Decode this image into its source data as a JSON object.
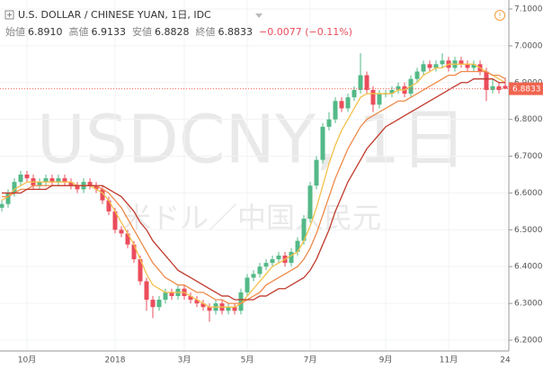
{
  "header": {
    "title": "U.S. DOLLAR / CHINESE YUAN, 1日, IDC",
    "stats": [
      {
        "label": "始値",
        "value": "6.8910"
      },
      {
        "label": "高値",
        "value": "6.9133"
      },
      {
        "label": "安値",
        "value": "6.8828"
      },
      {
        "label": "終値",
        "value": "6.8833"
      }
    ],
    "change": "−0.0077 (−0.11%)"
  },
  "chart_data": {
    "type": "candlestick",
    "watermark": "USDCNY, 1日",
    "watermark_sub": "米ドル／中国人民元",
    "categories": [
      null,
      null,
      null,
      null,
      "10月",
      null,
      null,
      null,
      null,
      null,
      null,
      null,
      null,
      null,
      null,
      null,
      null,
      null,
      "2018",
      null,
      null,
      null,
      null,
      null,
      null,
      null,
      null,
      null,
      null,
      "3月",
      null,
      null,
      null,
      null,
      null,
      null,
      null,
      null,
      null,
      "5月",
      null,
      null,
      null,
      null,
      null,
      null,
      null,
      null,
      null,
      "7月",
      null,
      null,
      null,
      null,
      null,
      null,
      null,
      null,
      null,
      null,
      null,
      "9月",
      null,
      null,
      null,
      null,
      null,
      null,
      null,
      null,
      null,
      "11月",
      null,
      null,
      null,
      null,
      null,
      null,
      null,
      null,
      "24"
    ],
    "open": [
      6.56,
      6.57,
      6.6,
      6.63,
      6.65,
      6.64,
      6.62,
      6.63,
      6.64,
      6.63,
      6.64,
      6.63,
      6.62,
      6.61,
      6.63,
      6.62,
      6.61,
      6.58,
      6.55,
      6.5,
      6.49,
      6.46,
      6.42,
      6.36,
      6.31,
      6.29,
      6.31,
      6.33,
      6.32,
      6.34,
      6.32,
      6.31,
      6.3,
      6.29,
      6.28,
      6.3,
      6.28,
      6.29,
      6.28,
      6.33,
      6.37,
      6.38,
      6.4,
      6.41,
      6.42,
      6.43,
      6.41,
      6.44,
      6.47,
      6.53,
      6.62,
      6.69,
      6.78,
      6.8,
      6.85,
      6.83,
      6.86,
      6.88,
      6.92,
      6.88,
      6.84,
      6.87,
      6.87,
      6.88,
      6.89,
      6.87,
      6.91,
      6.93,
      6.95,
      6.94,
      6.95,
      6.96,
      6.94,
      6.96,
      6.95,
      6.94,
      6.95,
      6.93,
      6.88,
      6.89,
      6.891
    ],
    "high": [
      6.58,
      6.61,
      6.64,
      6.66,
      6.66,
      6.65,
      6.64,
      6.65,
      6.65,
      6.65,
      6.65,
      6.64,
      6.63,
      6.64,
      6.64,
      6.63,
      6.62,
      6.59,
      6.56,
      6.51,
      6.5,
      6.47,
      6.43,
      6.37,
      6.32,
      6.32,
      6.34,
      6.34,
      6.35,
      6.35,
      6.33,
      6.32,
      6.31,
      6.3,
      6.31,
      6.31,
      6.3,
      6.3,
      6.34,
      6.38,
      6.39,
      6.41,
      6.42,
      6.43,
      6.44,
      6.44,
      6.45,
      6.48,
      6.54,
      6.63,
      6.7,
      6.79,
      6.82,
      6.86,
      6.86,
      6.87,
      6.89,
      6.98,
      6.93,
      6.89,
      6.88,
      6.88,
      6.89,
      6.9,
      6.9,
      6.92,
      6.94,
      6.96,
      6.96,
      6.96,
      6.98,
      6.97,
      6.97,
      6.97,
      6.96,
      6.96,
      6.96,
      6.94,
      6.91,
      6.9,
      6.9133
    ],
    "low": [
      6.55,
      6.56,
      6.59,
      6.62,
      6.63,
      6.61,
      6.61,
      6.62,
      6.62,
      6.62,
      6.62,
      6.61,
      6.6,
      6.6,
      6.61,
      6.6,
      6.57,
      6.54,
      6.49,
      6.48,
      6.45,
      6.41,
      6.35,
      6.28,
      6.26,
      6.28,
      6.3,
      6.31,
      6.31,
      6.31,
      6.3,
      6.29,
      6.28,
      6.25,
      6.27,
      6.27,
      6.27,
      6.27,
      6.27,
      6.32,
      6.36,
      6.37,
      6.39,
      6.4,
      6.41,
      6.4,
      6.4,
      6.43,
      6.46,
      6.52,
      6.61,
      6.68,
      6.77,
      6.79,
      6.82,
      6.82,
      6.85,
      6.87,
      6.87,
      6.82,
      6.83,
      6.86,
      6.86,
      6.87,
      6.86,
      6.86,
      6.9,
      6.92,
      6.93,
      6.93,
      6.94,
      6.93,
      6.93,
      6.94,
      6.93,
      6.93,
      6.92,
      6.85,
      6.87,
      6.87,
      6.8828
    ],
    "close": [
      6.57,
      6.6,
      6.63,
      6.65,
      6.64,
      6.62,
      6.63,
      6.64,
      6.63,
      6.64,
      6.63,
      6.62,
      6.61,
      6.63,
      6.62,
      6.61,
      6.58,
      6.55,
      6.5,
      6.49,
      6.46,
      6.42,
      6.36,
      6.31,
      6.29,
      6.31,
      6.33,
      6.32,
      6.34,
      6.32,
      6.31,
      6.3,
      6.29,
      6.28,
      6.3,
      6.28,
      6.29,
      6.28,
      6.33,
      6.37,
      6.38,
      6.4,
      6.41,
      6.42,
      6.43,
      6.41,
      6.44,
      6.47,
      6.53,
      6.62,
      6.69,
      6.78,
      6.8,
      6.85,
      6.83,
      6.86,
      6.88,
      6.92,
      6.88,
      6.84,
      6.87,
      6.87,
      6.88,
      6.89,
      6.87,
      6.91,
      6.93,
      6.95,
      6.94,
      6.95,
      6.96,
      6.94,
      6.96,
      6.95,
      6.94,
      6.95,
      6.93,
      6.88,
      6.89,
      6.88,
      6.8833
    ],
    "up_color": "#53b987",
    "down_color": "#eb4d5c",
    "last_price_color": "#f0654f",
    "ribbon": [
      {
        "color": "#f3c14b",
        "values": [
          6.58,
          6.59,
          6.61,
          6.62,
          6.63,
          6.63,
          6.63,
          6.63,
          6.63,
          6.63,
          6.63,
          6.63,
          6.62,
          6.62,
          6.62,
          6.61,
          6.6,
          6.58,
          6.55,
          6.52,
          6.49,
          6.46,
          6.42,
          6.38,
          6.35,
          6.34,
          6.33,
          6.33,
          6.33,
          6.33,
          6.32,
          6.31,
          6.3,
          6.29,
          6.29,
          6.29,
          6.29,
          6.29,
          6.3,
          6.32,
          6.34,
          6.36,
          6.38,
          6.4,
          6.41,
          6.42,
          6.43,
          6.44,
          6.47,
          6.51,
          6.56,
          6.62,
          6.68,
          6.73,
          6.77,
          6.8,
          6.83,
          6.86,
          6.87,
          6.87,
          6.87,
          6.87,
          6.87,
          6.88,
          6.88,
          6.89,
          6.9,
          6.92,
          6.93,
          6.94,
          6.94,
          6.95,
          6.95,
          6.95,
          6.95,
          6.95,
          6.94,
          6.93,
          6.92,
          6.91,
          6.9
        ]
      },
      {
        "color": "#ef8a4a",
        "values": [
          6.59,
          6.59,
          6.6,
          6.61,
          6.61,
          6.62,
          6.62,
          6.62,
          6.62,
          6.62,
          6.62,
          6.62,
          6.62,
          6.62,
          6.62,
          6.62,
          6.61,
          6.6,
          6.58,
          6.56,
          6.53,
          6.5,
          6.47,
          6.44,
          6.41,
          6.39,
          6.37,
          6.36,
          6.35,
          6.35,
          6.34,
          6.33,
          6.33,
          6.32,
          6.31,
          6.31,
          6.3,
          6.3,
          6.3,
          6.31,
          6.32,
          6.33,
          6.35,
          6.36,
          6.37,
          6.38,
          6.39,
          6.4,
          6.42,
          6.45,
          6.49,
          6.54,
          6.59,
          6.64,
          6.68,
          6.72,
          6.75,
          6.78,
          6.8,
          6.81,
          6.82,
          6.83,
          6.84,
          6.85,
          6.85,
          6.86,
          6.87,
          6.88,
          6.89,
          6.9,
          6.91,
          6.92,
          6.92,
          6.93,
          6.93,
          6.93,
          6.93,
          6.93,
          6.92,
          6.92,
          6.91
        ]
      },
      {
        "color": "#c0392b",
        "values": [
          6.6,
          6.6,
          6.6,
          6.6,
          6.61,
          6.61,
          6.61,
          6.61,
          6.62,
          6.62,
          6.62,
          6.62,
          6.62,
          6.62,
          6.62,
          6.62,
          6.62,
          6.61,
          6.6,
          6.59,
          6.57,
          6.55,
          6.52,
          6.5,
          6.47,
          6.45,
          6.43,
          6.41,
          6.39,
          6.38,
          6.37,
          6.36,
          6.35,
          6.34,
          6.33,
          6.32,
          6.32,
          6.31,
          6.31,
          6.31,
          6.31,
          6.32,
          6.32,
          6.33,
          6.34,
          6.34,
          6.35,
          6.36,
          6.37,
          6.39,
          6.42,
          6.46,
          6.5,
          6.55,
          6.59,
          6.63,
          6.66,
          6.69,
          6.72,
          6.74,
          6.76,
          6.78,
          6.79,
          6.8,
          6.81,
          6.82,
          6.83,
          6.84,
          6.85,
          6.86,
          6.87,
          6.88,
          6.89,
          6.9,
          6.9,
          6.91,
          6.91,
          6.91,
          6.91,
          6.9,
          6.9
        ]
      }
    ],
    "ylim": [
      6.2,
      7.1
    ],
    "yticks": [
      {
        "value": 6.2,
        "label": "6.2000"
      },
      {
        "value": 6.3,
        "label": "6.3000"
      },
      {
        "value": 6.4,
        "label": "6.4000"
      },
      {
        "value": 6.5,
        "label": "6.5000"
      },
      {
        "value": 6.6,
        "label": "6.6000"
      },
      {
        "value": 6.7,
        "label": "6.7000"
      },
      {
        "value": 6.8,
        "label": "6.8000"
      },
      {
        "value": 6.9,
        "label": "6.9000"
      },
      {
        "value": 7.0,
        "label": "7.0000"
      },
      {
        "value": 7.1,
        "label": "7.1000"
      }
    ],
    "grid": true
  }
}
